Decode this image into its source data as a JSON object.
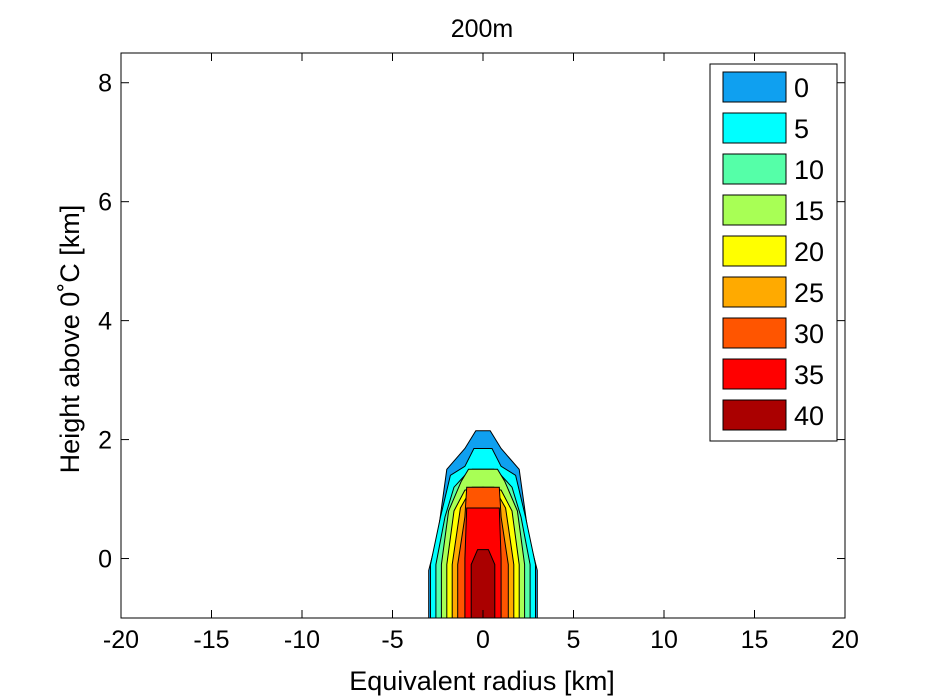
{
  "chart_data": {
    "type": "filled-contour",
    "title": "200m",
    "xlabel": "Equivalent radius [km]",
    "ylabel": "Height above 0˚C [km]",
    "xlim": [
      -20,
      20
    ],
    "ylim": [
      -1,
      8.5
    ],
    "xticks": [
      -20,
      -15,
      -10,
      -5,
      0,
      5,
      10,
      15,
      20
    ],
    "yticks": [
      0,
      2,
      4,
      6,
      8
    ],
    "grid": false,
    "legend_position": "top-right",
    "levels": [
      {
        "value": 0,
        "label": "0",
        "color": "#0fa0f0"
      },
      {
        "value": 5,
        "label": "5",
        "color": "#00ffff"
      },
      {
        "value": 10,
        "label": "10",
        "color": "#55ffa8"
      },
      {
        "value": 15,
        "label": "15",
        "color": "#a8ff55"
      },
      {
        "value": 20,
        "label": "20",
        "color": "#ffff00"
      },
      {
        "value": 25,
        "label": "25",
        "color": "#ffaa00"
      },
      {
        "value": 30,
        "label": "30",
        "color": "#ff5500"
      },
      {
        "value": 35,
        "label": "35",
        "color": "#ff0000"
      },
      {
        "value": 40,
        "label": "40",
        "color": "#aa0000"
      }
    ],
    "contours": [
      {
        "level": 0,
        "outline": [
          [
            -3,
            -1
          ],
          [
            -3,
            -0.2
          ],
          [
            -2.5,
            0.4
          ],
          [
            -2,
            1.5
          ],
          [
            -1,
            1.85
          ],
          [
            -0.4,
            2.15
          ],
          [
            0.4,
            2.15
          ],
          [
            1,
            1.85
          ],
          [
            2,
            1.5
          ],
          [
            2.5,
            0.4
          ],
          [
            3,
            -0.2
          ],
          [
            3,
            -1
          ]
        ]
      },
      {
        "level": 5,
        "outline": [
          [
            -2.9,
            -1
          ],
          [
            -2.9,
            -0.1
          ],
          [
            -2.35,
            0.7
          ],
          [
            -1.8,
            1.4
          ],
          [
            -1,
            1.55
          ],
          [
            -0.5,
            1.85
          ],
          [
            0.5,
            1.85
          ],
          [
            1,
            1.55
          ],
          [
            1.8,
            1.4
          ],
          [
            2.35,
            0.7
          ],
          [
            2.9,
            -0.1
          ],
          [
            2.9,
            -1
          ]
        ]
      },
      {
        "level": 10,
        "outline": [
          [
            -2.6,
            -1
          ],
          [
            -2.6,
            -0.1
          ],
          [
            -2.1,
            0.7
          ],
          [
            -1.6,
            1.2
          ],
          [
            -1,
            1.4
          ],
          [
            -0.6,
            1.5
          ],
          [
            0.6,
            1.5
          ],
          [
            1,
            1.4
          ],
          [
            1.6,
            1.2
          ],
          [
            2.1,
            0.7
          ],
          [
            2.6,
            -0.1
          ],
          [
            2.6,
            -1
          ]
        ]
      },
      {
        "level": 15,
        "outline": [
          [
            -2.3,
            -1
          ],
          [
            -2.3,
            -0.1
          ],
          [
            -1.9,
            0.8
          ],
          [
            -1.2,
            1.3
          ],
          [
            -0.8,
            1.5
          ],
          [
            0.8,
            1.5
          ],
          [
            1.2,
            1.3
          ],
          [
            1.9,
            0.8
          ],
          [
            2.3,
            -0.1
          ],
          [
            2.3,
            -1
          ]
        ]
      },
      {
        "level": 20,
        "outline": [
          [
            -2,
            -1
          ],
          [
            -2,
            -0.1
          ],
          [
            -1.6,
            0.8
          ],
          [
            -1,
            1.15
          ],
          [
            0,
            1.2
          ],
          [
            1,
            1.15
          ],
          [
            1.6,
            0.8
          ],
          [
            2,
            -0.1
          ],
          [
            2,
            -1
          ]
        ]
      },
      {
        "level": 25,
        "outline": [
          [
            -1.7,
            -1
          ],
          [
            -1.7,
            -0.1
          ],
          [
            -1.25,
            0.85
          ],
          [
            -0.6,
            1.2
          ],
          [
            0.6,
            1.2
          ],
          [
            1.25,
            0.85
          ],
          [
            1.7,
            -0.1
          ],
          [
            1.7,
            -1
          ]
        ]
      },
      {
        "level": 30,
        "outline": [
          [
            -1.4,
            -1
          ],
          [
            -1.4,
            -0.1
          ],
          [
            -1,
            0.7
          ],
          [
            -0.9,
            1.2
          ],
          [
            0.9,
            1.2
          ],
          [
            1,
            0.7
          ],
          [
            1.4,
            -0.1
          ],
          [
            1.4,
            -1
          ]
        ]
      },
      {
        "level": 35,
        "outline": [
          [
            -1,
            -1
          ],
          [
            -1,
            0
          ],
          [
            -0.9,
            0.85
          ],
          [
            0.9,
            0.85
          ],
          [
            1,
            0
          ],
          [
            1,
            -1
          ]
        ]
      },
      {
        "level": 40,
        "outline": [
          [
            -0.65,
            -1
          ],
          [
            -0.65,
            -0.1
          ],
          [
            -0.3,
            0.15
          ],
          [
            0.3,
            0.15
          ],
          [
            0.65,
            -0.1
          ],
          [
            0.65,
            -1
          ]
        ]
      }
    ]
  }
}
